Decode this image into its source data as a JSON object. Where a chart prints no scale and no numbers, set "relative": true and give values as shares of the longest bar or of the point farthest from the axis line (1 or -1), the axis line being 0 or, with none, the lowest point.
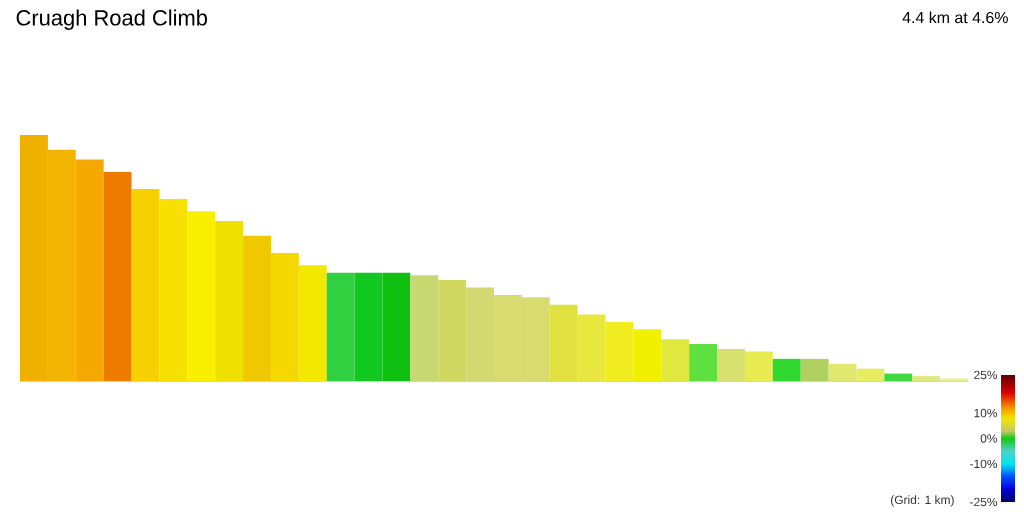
{
  "chart_data": {
    "type": "bar",
    "title": "Cruagh Road Climb",
    "subtitle": "4.4 km at 4.6%",
    "categories": [
      null,
      null,
      null,
      null,
      null,
      null,
      null,
      null,
      null,
      null,
      null,
      null,
      null,
      null,
      null,
      null,
      null,
      null,
      null,
      null,
      null,
      null,
      null,
      null,
      null,
      null,
      null,
      null,
      null,
      null,
      null,
      null,
      null,
      null
    ],
    "values": [
      1.0,
      0.94,
      0.9,
      0.85,
      0.78,
      0.74,
      0.69,
      0.65,
      0.59,
      0.52,
      0.47,
      0.44,
      0.44,
      0.44,
      0.43,
      0.41,
      0.38,
      0.35,
      0.34,
      0.31,
      0.27,
      0.24,
      0.21,
      0.17,
      0.15,
      0.13,
      0.12,
      0.09,
      0.09,
      0.07,
      0.05,
      0.03,
      0.02,
      0.01
    ],
    "colors": [
      "#f0b000",
      "#f2b400",
      "#f5a800",
      "#ee7a00",
      "#f8d000",
      "#f5e000",
      "#f8f000",
      "#f0e000",
      "#f0c800",
      "#f5d800",
      "#f3e800",
      "#30d040",
      "#10c820",
      "#10c010",
      "#c8d870",
      "#d0d860",
      "#d4d870",
      "#d8dc70",
      "#d8dc70",
      "#e0e040",
      "#e8e840",
      "#f0ec20",
      "#f0f000",
      "#e0e840",
      "#60e040",
      "#d8e070",
      "#e8ec50",
      "#30d830",
      "#b0d060",
      "#e0e870",
      "#e8ec60",
      "#40d840",
      "#e0e880",
      "#e8f090"
    ],
    "relative": true,
    "clim": [
      -25,
      25
    ],
    "cticks": [
      {
        "value": 25,
        "label": "25%"
      },
      {
        "value": 10,
        "label": "10%"
      },
      {
        "value": 0,
        "label": "0%"
      },
      {
        "value": -10,
        "label": "-10%"
      },
      {
        "value": -25,
        "label": "-25%"
      }
    ],
    "annotations": [
      "(Grid: 1 km)"
    ]
  }
}
